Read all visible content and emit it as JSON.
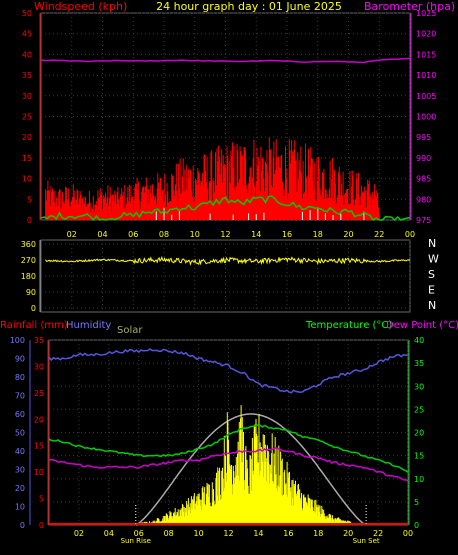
{
  "header": {
    "title": "24 hour graph day : 01 June 2025",
    "wind_label": "Windspeed (kph)",
    "baro_label": "Barometer (hpa)"
  },
  "colors": {
    "wind": "#ff0000",
    "gust": "#ff0000",
    "baro": "#cc00cc",
    "direction": "#ffff00",
    "humidity": "#5555dd",
    "temperature": "#00cc00",
    "dew_point": "#cc00cc",
    "solar": "#ffff00",
    "solar_theory": "#aaaaaa",
    "rain": "#ff0000"
  },
  "chart_data": [
    {
      "type": "line",
      "name": "wind-baro",
      "x_ticks": [
        "02",
        "04",
        "06",
        "08",
        "10",
        "12",
        "14",
        "16",
        "18",
        "20",
        "22",
        "00"
      ],
      "y_left_ticks": [
        "0",
        "5",
        "10",
        "15",
        "20",
        "25",
        "30",
        "35",
        "40",
        "45",
        "50"
      ],
      "y_right_ticks": [
        "975",
        "980",
        "985",
        "990",
        "995",
        "1000",
        "1005",
        "1010",
        "1015",
        "1020",
        "1025"
      ],
      "ylim_left": [
        0,
        50
      ],
      "ylim_right": [
        975,
        1025
      ],
      "xlim_hours": [
        0,
        24
      ],
      "grid": true,
      "baro_points": [
        [
          0,
          1013.6
        ],
        [
          1.5,
          1013.5
        ],
        [
          3,
          1013.3
        ],
        [
          5,
          1013.5
        ],
        [
          7,
          1013.4
        ],
        [
          9,
          1013.6
        ],
        [
          11,
          1013.4
        ],
        [
          13,
          1013.3
        ],
        [
          15,
          1013.5
        ],
        [
          17,
          1013.2
        ],
        [
          19,
          1013.3
        ],
        [
          21,
          1013.1
        ],
        [
          22,
          1013.6
        ],
        [
          24,
          1014.0
        ]
      ],
      "gust_envelope": [
        [
          0,
          0
        ],
        [
          0.3,
          10
        ],
        [
          1,
          8
        ],
        [
          2,
          9
        ],
        [
          3,
          7
        ],
        [
          4,
          9
        ],
        [
          5,
          8
        ],
        [
          6,
          10
        ],
        [
          7,
          11
        ],
        [
          8,
          12
        ],
        [
          9,
          15
        ],
        [
          10,
          16
        ],
        [
          11,
          17
        ],
        [
          12,
          19
        ],
        [
          13,
          20
        ],
        [
          14,
          21
        ],
        [
          15,
          20
        ],
        [
          16,
          20
        ],
        [
          17,
          19
        ],
        [
          18,
          17
        ],
        [
          19,
          16
        ],
        [
          20,
          13
        ],
        [
          21,
          11
        ],
        [
          21.8,
          10
        ],
        [
          22.1,
          0
        ],
        [
          24,
          0
        ]
      ],
      "avg_wind": [
        [
          0,
          0
        ],
        [
          1,
          1
        ],
        [
          2,
          1
        ],
        [
          3,
          1
        ],
        [
          4,
          0
        ],
        [
          5,
          1
        ],
        [
          6,
          1
        ],
        [
          7,
          2
        ],
        [
          8,
          2
        ],
        [
          9,
          3
        ],
        [
          10,
          3
        ],
        [
          11,
          4
        ],
        [
          12,
          5
        ],
        [
          13,
          4
        ],
        [
          14,
          5
        ],
        [
          15,
          5
        ],
        [
          16,
          4
        ],
        [
          17,
          3
        ],
        [
          18,
          3
        ],
        [
          19,
          2
        ],
        [
          20,
          2
        ],
        [
          21,
          1
        ],
        [
          22,
          0
        ],
        [
          24,
          0
        ]
      ]
    },
    {
      "type": "line",
      "name": "wind-direction",
      "y_ticks": [
        "360",
        "270",
        "180",
        "90",
        "0"
      ],
      "right_labels": [
        "N",
        "W",
        "S",
        "E",
        "N"
      ],
      "ylim": [
        0,
        360
      ],
      "dir_points": [
        [
          0.3,
          268
        ],
        [
          2,
          262
        ],
        [
          4,
          272
        ],
        [
          6,
          265
        ],
        [
          8,
          272
        ],
        [
          10,
          258
        ],
        [
          12,
          270
        ],
        [
          14,
          262
        ],
        [
          16,
          275
        ],
        [
          18,
          262
        ],
        [
          20,
          268
        ],
        [
          22,
          262
        ],
        [
          24,
          270
        ]
      ]
    },
    {
      "type": "area",
      "name": "temp-humidity-solar-rain",
      "labels": {
        "rain": "Rainfall (mm)",
        "humidity": "Humidity",
        "solar": "Solar",
        "temperature": "Temperature (°C)",
        "dew_point": "Dew Point (°C)"
      },
      "humidity_ticks": [
        "100",
        "90",
        "80",
        "70",
        "60",
        "50",
        "40",
        "30",
        "20",
        "10",
        "0"
      ],
      "rain_ticks": [
        "35",
        "30",
        "25",
        "20",
        "15",
        "10",
        "5",
        "0"
      ],
      "temp_ticks": [
        "40",
        "35",
        "30",
        "25",
        "20",
        "15",
        "10",
        "5",
        "0"
      ],
      "x_ticks": [
        "02",
        "04",
        "06",
        "08",
        "10",
        "12",
        "14",
        "16",
        "18",
        "20",
        "22",
        "00"
      ],
      "sun_labels": [
        "Sun Rise",
        "Sun Set"
      ],
      "humidity": [
        [
          0,
          90
        ],
        [
          1,
          90
        ],
        [
          2,
          92
        ],
        [
          3,
          92
        ],
        [
          4,
          93
        ],
        [
          5,
          94
        ],
        [
          6,
          94
        ],
        [
          7,
          95
        ],
        [
          8,
          94
        ],
        [
          9,
          93
        ],
        [
          10,
          90
        ],
        [
          11,
          88
        ],
        [
          12,
          86
        ],
        [
          13,
          82
        ],
        [
          14,
          76
        ],
        [
          15,
          74
        ],
        [
          16,
          72
        ],
        [
          17,
          72
        ],
        [
          18,
          76
        ],
        [
          19,
          80
        ],
        [
          20,
          82
        ],
        [
          21,
          84
        ],
        [
          22,
          88
        ],
        [
          23,
          91
        ],
        [
          24,
          92
        ]
      ],
      "temperature": [
        [
          0,
          18.5
        ],
        [
          1,
          18
        ],
        [
          2,
          17
        ],
        [
          3,
          16.5
        ],
        [
          4,
          16
        ],
        [
          5,
          15.5
        ],
        [
          6,
          15
        ],
        [
          7,
          15
        ],
        [
          8,
          15
        ],
        [
          9,
          15.5
        ],
        [
          10,
          16.5
        ],
        [
          11,
          17.5
        ],
        [
          12,
          19.5
        ],
        [
          13,
          21
        ],
        [
          14,
          21.5
        ],
        [
          15,
          21
        ],
        [
          16,
          20.5
        ],
        [
          17,
          19
        ],
        [
          18,
          18.5
        ],
        [
          19,
          17
        ],
        [
          20,
          16
        ],
        [
          21,
          15
        ],
        [
          22,
          14
        ],
        [
          23,
          13
        ],
        [
          24,
          11.5
        ]
      ],
      "dew_point": [
        [
          0,
          14
        ],
        [
          1,
          13.5
        ],
        [
          2,
          13
        ],
        [
          3,
          12.5
        ],
        [
          4,
          12.5
        ],
        [
          5,
          12.5
        ],
        [
          6,
          12.5
        ],
        [
          7,
          13
        ],
        [
          8,
          13.5
        ],
        [
          9,
          14
        ],
        [
          10,
          14
        ],
        [
          11,
          15
        ],
        [
          12,
          15.5
        ],
        [
          13,
          16
        ],
        [
          14,
          16
        ],
        [
          15,
          16.5
        ],
        [
          16,
          16
        ],
        [
          17,
          15
        ],
        [
          18,
          14.5
        ],
        [
          19,
          13.5
        ],
        [
          20,
          13
        ],
        [
          21,
          12.5
        ],
        [
          22,
          11.5
        ],
        [
          23,
          10.5
        ],
        [
          24,
          9.5
        ]
      ],
      "solar_theory_peak": 24,
      "solar_peak": [
        [
          5,
          0
        ],
        [
          7,
          1
        ],
        [
          8,
          3
        ],
        [
          9,
          5
        ],
        [
          10,
          8
        ],
        [
          11,
          11
        ],
        [
          11.6,
          16
        ],
        [
          11.9,
          26
        ],
        [
          12.2,
          18
        ],
        [
          12.9,
          27
        ],
        [
          13.3,
          13
        ],
        [
          13.8,
          23
        ],
        [
          14.2,
          26
        ],
        [
          14.8,
          21
        ],
        [
          15.5,
          17
        ],
        [
          16,
          13
        ],
        [
          17,
          8
        ],
        [
          18,
          5
        ],
        [
          19,
          2
        ],
        [
          20,
          1
        ],
        [
          21,
          0
        ]
      ],
      "rain_total": 0,
      "sunrise_hour": 5.8,
      "sunset_hour": 21.2
    }
  ]
}
